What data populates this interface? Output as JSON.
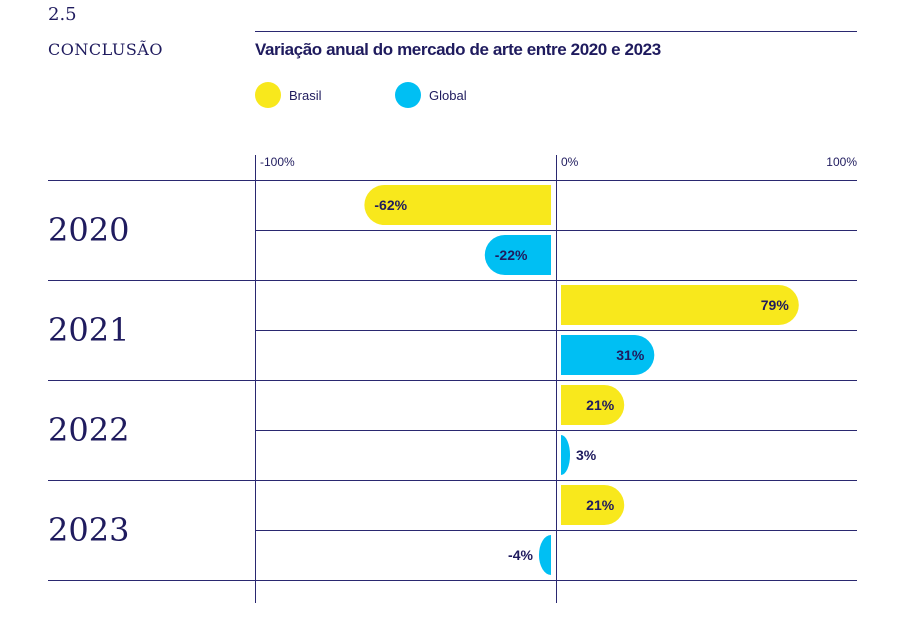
{
  "section": {
    "number": "2.5",
    "title": "CONCLUSÃO"
  },
  "colors": {
    "brasil": "#f8e81c",
    "global": "#00bff3",
    "ink": "#1f1b5e",
    "rule": "#2a2870"
  },
  "chart_data": {
    "type": "bar",
    "orientation": "horizontal",
    "title": "Variação anual do mercado de arte entre 2020 e 2023",
    "categories": [
      "2020",
      "2021",
      "2022",
      "2023"
    ],
    "series": [
      {
        "name": "Brasil",
        "color": "#f8e81c",
        "values": [
          -62,
          79,
          21,
          21
        ]
      },
      {
        "name": "Global",
        "color": "#00bff3",
        "values": [
          -22,
          31,
          3,
          -4
        ]
      }
    ],
    "xlim": [
      -100,
      100
    ],
    "tick_labels": [
      "-100%",
      "0%",
      "100%"
    ],
    "unit": "%",
    "legend": "top-left"
  }
}
